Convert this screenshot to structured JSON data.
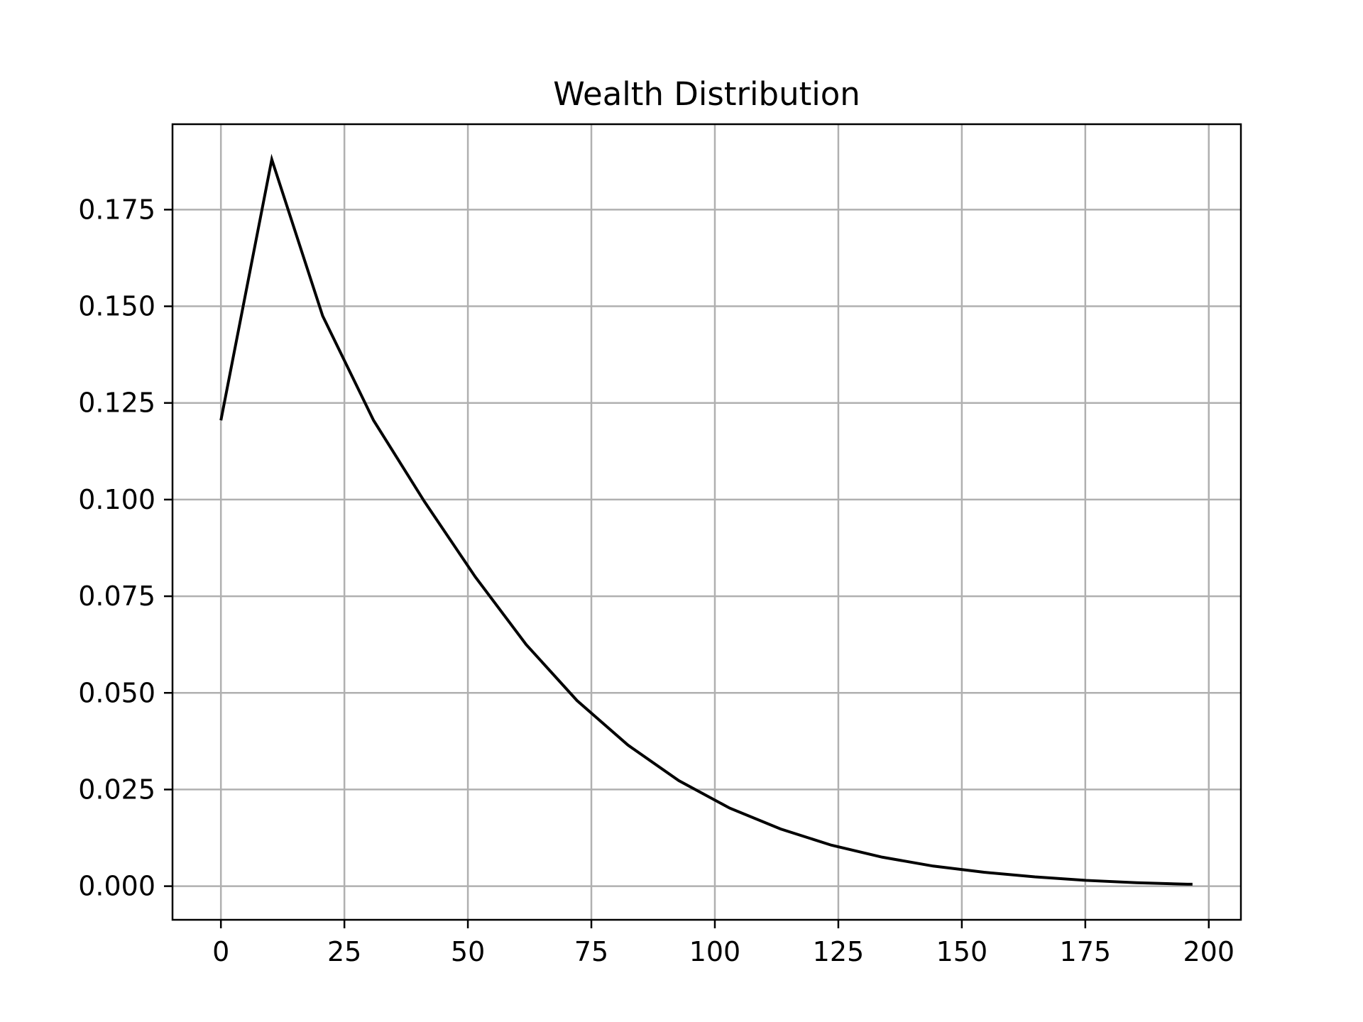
{
  "chart_data": {
    "type": "line",
    "title": "Wealth Distribution",
    "xlabel": "",
    "ylabel": "",
    "xlim": [
      -9.8,
      206.5
    ],
    "ylim": [
      -0.0087,
      0.1971
    ],
    "x_ticks": [
      0,
      25,
      50,
      75,
      100,
      125,
      150,
      175,
      200
    ],
    "x_tick_labels": [
      "0",
      "25",
      "50",
      "75",
      "100",
      "125",
      "150",
      "175",
      "200"
    ],
    "y_ticks": [
      0.0,
      0.025,
      0.05,
      0.075,
      0.1,
      0.125,
      0.15,
      0.175
    ],
    "y_tick_labels": [
      "0.000",
      "0.025",
      "0.050",
      "0.075",
      "0.100",
      "0.125",
      "0.150",
      "0.175"
    ],
    "grid": true,
    "legend": "none",
    "line_color": "#000000",
    "grid_color": "#b0b0b0",
    "series": [
      {
        "x": [
          0,
          10.3,
          20.6,
          30.9,
          41.2,
          51.5,
          61.8,
          72.1,
          82.4,
          92.7,
          103.0,
          113.3,
          123.6,
          133.9,
          144.2,
          154.5,
          164.8,
          175.1,
          185.4,
          195.7,
          196.7
        ],
        "y": [
          0.1205,
          0.188,
          0.1475,
          0.1205,
          0.0995,
          0.08,
          0.0625,
          0.048,
          0.0365,
          0.0273,
          0.0202,
          0.0148,
          0.0106,
          0.0075,
          0.0052,
          0.0036,
          0.0024,
          0.0015,
          0.0009,
          0.0005,
          0.0005
        ]
      }
    ]
  }
}
